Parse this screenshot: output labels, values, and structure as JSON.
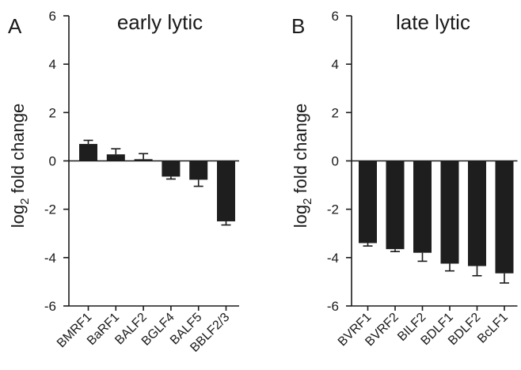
{
  "chart_data": [
    {
      "type": "bar",
      "panel": "A",
      "title": "early lytic",
      "ylabel_main": "log",
      "ylabel_sub": "2",
      "ylabel_rest": " fold  change",
      "ylim": [
        -6,
        6
      ],
      "yticks": [
        6,
        4,
        2,
        0,
        -2,
        -4,
        -6
      ],
      "categories": [
        "BMRF1",
        "BaRF1",
        "BALF2",
        "BGLF4",
        "BALF5",
        "BBLF2/3"
      ],
      "values": [
        0.7,
        0.27,
        0.07,
        -0.65,
        -0.78,
        -2.5
      ],
      "error_tips": [
        0.85,
        0.5,
        0.3,
        -0.75,
        -1.05,
        -2.65
      ]
    },
    {
      "type": "bar",
      "panel": "B",
      "title": "late lytic",
      "ylabel_main": "log",
      "ylabel_sub": "2",
      "ylabel_rest": " fold  change",
      "ylim": [
        -6,
        6
      ],
      "yticks": [
        6,
        4,
        2,
        0,
        -2,
        -4,
        -6
      ],
      "categories": [
        "BVRF1",
        "BVRF2",
        "BILF2",
        "BDLF1",
        "BDLF2",
        "BcLF1"
      ],
      "values": [
        -3.4,
        -3.65,
        -3.8,
        -4.25,
        -4.35,
        -4.65
      ],
      "error_tips": [
        -3.52,
        -3.75,
        -4.15,
        -4.55,
        -4.75,
        -5.05
      ]
    }
  ]
}
